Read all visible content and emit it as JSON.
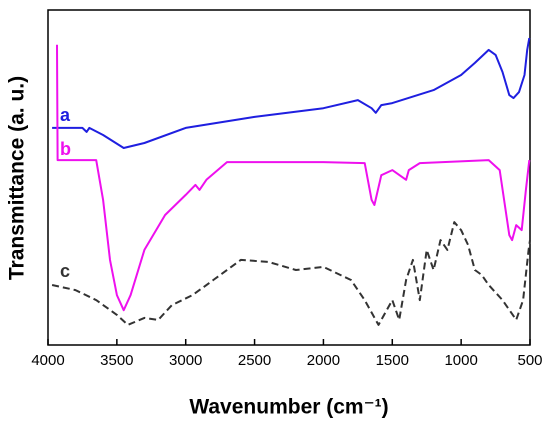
{
  "chart_data": {
    "type": "line",
    "x_label": "Wavenumber (cm⁻¹)",
    "y_label": "Transmittance (a. u.)",
    "xlim": [
      4000,
      500
    ],
    "xticks": [
      4000,
      3500,
      3000,
      2500,
      2000,
      1500,
      1000,
      500
    ],
    "ylim": [
      0,
      100
    ],
    "series": [
      {
        "name": "a",
        "color": "#1f1fe0",
        "dash": false,
        "x": [
          3970,
          3750,
          3720,
          3700,
          3600,
          3450,
          3300,
          3000,
          2500,
          2000,
          1750,
          1650,
          1620,
          1580,
          1500,
          1200,
          1000,
          900,
          800,
          750,
          700,
          650,
          620,
          580,
          540,
          520,
          505
        ],
        "values": [
          64.8,
          64.8,
          63.6,
          64.8,
          62.7,
          58.8,
          60.3,
          64.8,
          68.1,
          70.7,
          73.1,
          70.7,
          69.3,
          71.6,
          72.2,
          76.1,
          80.6,
          84.2,
          88.1,
          86.6,
          81.5,
          74.6,
          73.7,
          75.5,
          80.6,
          88.1,
          91.6
        ]
      },
      {
        "name": "b",
        "color": "#ee10ee",
        "dash": false,
        "x": [
          3935,
          3930,
          3650,
          3600,
          3550,
          3500,
          3450,
          3400,
          3300,
          3150,
          3000,
          2930,
          2900,
          2850,
          2700,
          2000,
          1700,
          1650,
          1630,
          1580,
          1500,
          1400,
          1380,
          1300,
          800,
          720,
          650,
          630,
          600,
          560,
          530,
          505
        ],
        "values": [
          89.6,
          55.2,
          55.2,
          43.3,
          25.4,
          14.9,
          10.4,
          14.9,
          28.4,
          38.8,
          44.8,
          47.8,
          46.3,
          49.3,
          54.6,
          54.6,
          54.3,
          43.3,
          41.8,
          50.7,
          52.2,
          49.3,
          52.2,
          54.3,
          55.2,
          52.2,
          32.8,
          31.3,
          35.8,
          34.3,
          46.3,
          55.2
        ]
      },
      {
        "name": "c",
        "color": "#333333",
        "dash": true,
        "x": [
          3970,
          3800,
          3650,
          3500,
          3420,
          3300,
          3200,
          3100,
          2950,
          2800,
          2600,
          2400,
          2200,
          2000,
          1800,
          1700,
          1600,
          1500,
          1450,
          1400,
          1350,
          1300,
          1250,
          1200,
          1150,
          1100,
          1050,
          1000,
          950,
          900,
          850,
          800,
          700,
          600,
          550,
          510,
          500
        ],
        "values": [
          17.9,
          16.4,
          13.4,
          9.0,
          6.0,
          8.1,
          7.5,
          11.9,
          14.9,
          19.4,
          25.4,
          24.8,
          22.4,
          23.3,
          19.4,
          13.4,
          6.0,
          13.4,
          7.5,
          19.4,
          25.4,
          13.4,
          28.4,
          22.4,
          31.3,
          28.4,
          36.7,
          34.3,
          29.9,
          22.4,
          20.9,
          17.9,
          13.4,
          7.5,
          13.4,
          28.4,
          31.3
        ]
      }
    ]
  }
}
